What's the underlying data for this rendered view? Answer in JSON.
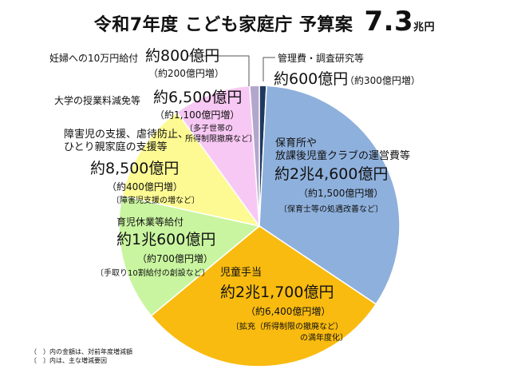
{
  "chart_data": {
    "type": "pie",
    "title": "令和7年度 こども家庭庁 予算案",
    "total_value": "7.3",
    "total_unit": "兆円",
    "unit": "億円",
    "slices": [
      {
        "name": "管理費・調査研究等",
        "value": 600,
        "amount": "約600億円",
        "change": "（約300億円増）",
        "reason": "",
        "color": "#1f3a5f"
      },
      {
        "name": "保育所や放課後児童クラブの運営費等",
        "name_lines": [
          "保育所や",
          "放課後児童クラブの運営費等"
        ],
        "value": 24600,
        "amount": "約2兆4,600億円",
        "change": "（約1,500億円増）",
        "reason": "〔保育士等の処遇改善など〕",
        "color": "#8eb0dc"
      },
      {
        "name": "児童手当",
        "value": 21700,
        "amount": "約2兆1,700億円",
        "change": "（約6,400億円増）",
        "reason_lines": [
          "〔拡充（所得制限の撤廃など）",
          "の満年度化〕"
        ],
        "color": "#f9bb0f"
      },
      {
        "name": "育児休業等給付",
        "value": 10600,
        "amount": "約1兆600億円",
        "change": "（約700億円増）",
        "reason": "〔手取り10割給付の創設など〕",
        "color": "#c9f5a0"
      },
      {
        "name": "障害児の支援、虐待防止、ひとり親家庭の支援等",
        "name_lines": [
          "障害児の支援、虐待防止、",
          "ひとり親家庭の支援等"
        ],
        "value": 8500,
        "amount": "約8,500億円",
        "change": "（約400億円増）",
        "reason": "〔障害児支援の増など〕",
        "color": "#fdfa93"
      },
      {
        "name": "大学の授業料減免等",
        "value": 6500,
        "amount": "約6,500億円",
        "change": "（約1,100億円増）",
        "reason_lines": [
          "〔多子世帯の",
          "所得制限撤廃など〕"
        ],
        "color": "#f8c8f4"
      },
      {
        "name": "妊婦への10万円給付",
        "value": 800,
        "amount": "約800億円",
        "change": "（約200億円増）",
        "reason": "",
        "color": "#b3a6cc"
      }
    ]
  },
  "notes": [
    "（　）内の金額は、対前年度増減額",
    "〔　〕内は、主な増減要因"
  ]
}
